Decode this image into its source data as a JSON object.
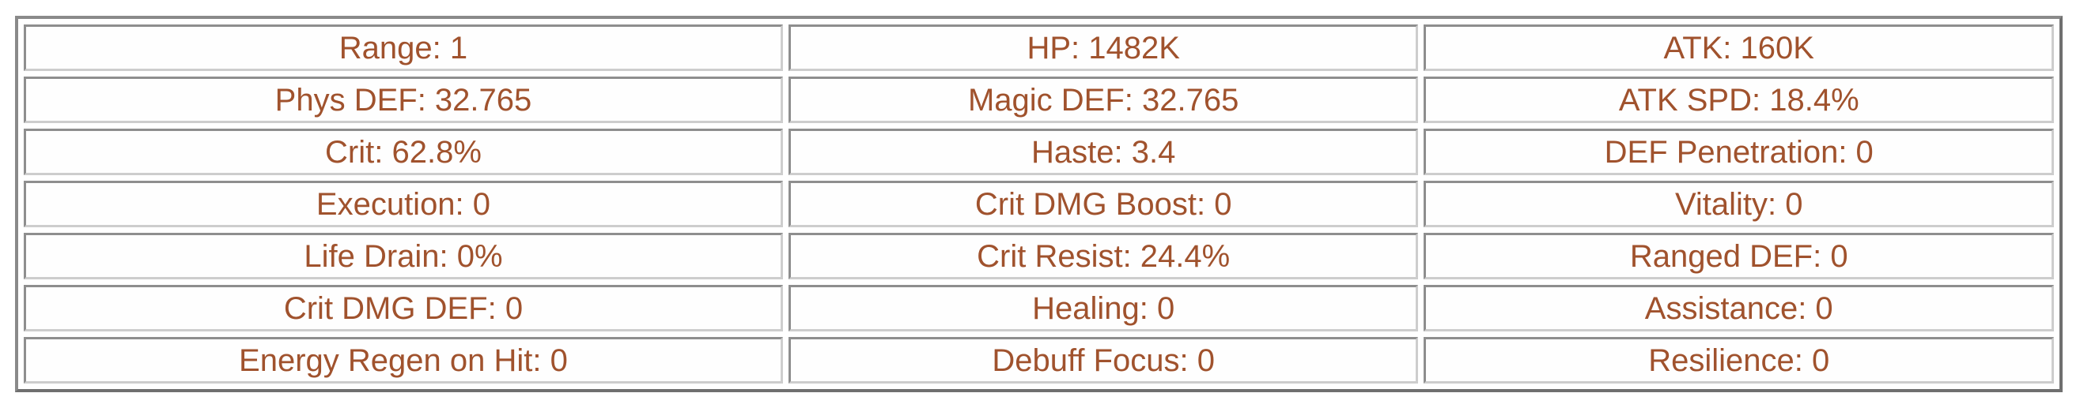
{
  "colors": {
    "text": "#a0522d",
    "outer_border": "#7a7a7a",
    "cell_border_dark": "#8e8e8e",
    "cell_border_light": "#cdcdcd",
    "background": "#ffffff"
  },
  "stats_table": {
    "rows": [
      {
        "cells": [
          "Range: 1",
          "HP: 1482K",
          "ATK: 160K"
        ]
      },
      {
        "cells": [
          "Phys DEF: 32.765",
          "Magic DEF: 32.765",
          "ATK SPD: 18.4%"
        ]
      },
      {
        "cells": [
          "Crit: 62.8%",
          "Haste: 3.4",
          "DEF Penetration: 0"
        ]
      },
      {
        "cells": [
          "Execution: 0",
          "Crit DMG Boost: 0",
          "Vitality: 0"
        ]
      },
      {
        "cells": [
          "Life Drain: 0%",
          "Crit Resist: 24.4%",
          "Ranged DEF: 0"
        ]
      },
      {
        "cells": [
          "Crit DMG DEF: 0",
          "Healing: 0",
          "Assistance: 0"
        ]
      },
      {
        "cells": [
          "Energy Regen on Hit: 0",
          "Debuff Focus: 0",
          "Resilience: 0"
        ]
      }
    ]
  }
}
